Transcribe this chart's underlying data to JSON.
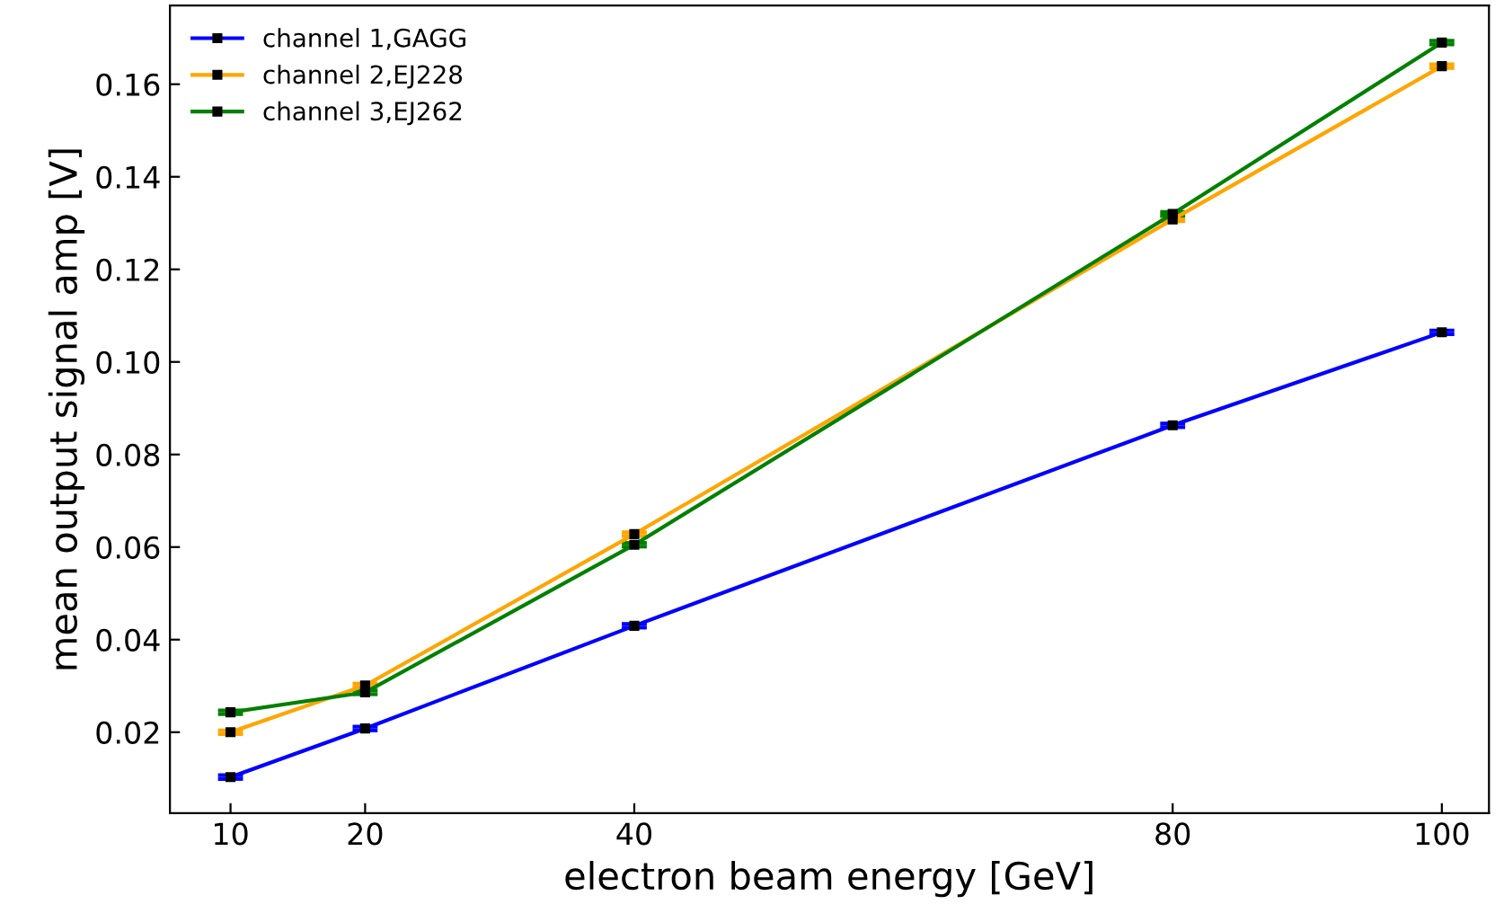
{
  "chart_data": {
    "type": "line",
    "xlabel": "electron beam energy [GeV]",
    "ylabel": "mean output signal amp [V]",
    "x": [
      10,
      20,
      40,
      80,
      100
    ],
    "xlim": [
      5.5,
      103.5
    ],
    "xticks": [
      10,
      20,
      40,
      80,
      100
    ],
    "ylim": [
      0.0025,
      0.177
    ],
    "yticks": [
      0.02,
      0.04,
      0.06,
      0.08,
      {
        "value": 0.1,
        "label": "0.10"
      },
      0.12,
      0.14,
      0.16
    ],
    "marker": "square",
    "legend": "top left",
    "grid": false,
    "series": [
      {
        "name": "channel 1,GAGG",
        "color": "#0000ff",
        "values": [
          0.0103,
          0.0208,
          0.043,
          0.0863,
          0.1064
        ],
        "errors": [
          0.0004,
          0.0004,
          0.0004,
          0.0004,
          0.0004
        ]
      },
      {
        "name": "channel 2,EJ228",
        "color": "#ffa500",
        "values": [
          0.02,
          0.0301,
          0.0628,
          0.1308,
          0.1639
        ],
        "errors": [
          0.0004,
          0.0004,
          0.0004,
          0.0004,
          0.0004
        ]
      },
      {
        "name": "channel 3,EJ262",
        "color": "#008000",
        "values": [
          0.0243,
          0.0286,
          0.0605,
          0.132,
          0.169
        ],
        "errors": [
          0.0004,
          0.0004,
          0.0004,
          0.0004,
          0.0004
        ]
      }
    ]
  }
}
